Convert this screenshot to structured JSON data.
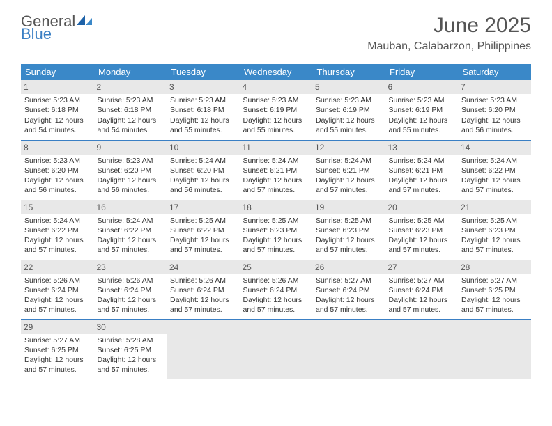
{
  "brand": {
    "word1": "General",
    "word2": "Blue"
  },
  "header": {
    "title": "June 2025",
    "location": "Mauban, Calabarzon, Philippines"
  },
  "colors": {
    "header_bg": "#3a88c8",
    "header_text": "#ffffff",
    "rule": "#3a7fc4",
    "daynum_bg": "#e8e8e8",
    "empty_bg": "#e8e8e8",
    "text": "#333333",
    "title_text": "#555555"
  },
  "days": [
    "Sunday",
    "Monday",
    "Tuesday",
    "Wednesday",
    "Thursday",
    "Friday",
    "Saturday"
  ],
  "weeks": [
    [
      {
        "n": "1",
        "sr": "Sunrise: 5:23 AM",
        "ss": "Sunset: 6:18 PM",
        "dl": "Daylight: 12 hours and 54 minutes."
      },
      {
        "n": "2",
        "sr": "Sunrise: 5:23 AM",
        "ss": "Sunset: 6:18 PM",
        "dl": "Daylight: 12 hours and 54 minutes."
      },
      {
        "n": "3",
        "sr": "Sunrise: 5:23 AM",
        "ss": "Sunset: 6:18 PM",
        "dl": "Daylight: 12 hours and 55 minutes."
      },
      {
        "n": "4",
        "sr": "Sunrise: 5:23 AM",
        "ss": "Sunset: 6:19 PM",
        "dl": "Daylight: 12 hours and 55 minutes."
      },
      {
        "n": "5",
        "sr": "Sunrise: 5:23 AM",
        "ss": "Sunset: 6:19 PM",
        "dl": "Daylight: 12 hours and 55 minutes."
      },
      {
        "n": "6",
        "sr": "Sunrise: 5:23 AM",
        "ss": "Sunset: 6:19 PM",
        "dl": "Daylight: 12 hours and 55 minutes."
      },
      {
        "n": "7",
        "sr": "Sunrise: 5:23 AM",
        "ss": "Sunset: 6:20 PM",
        "dl": "Daylight: 12 hours and 56 minutes."
      }
    ],
    [
      {
        "n": "8",
        "sr": "Sunrise: 5:23 AM",
        "ss": "Sunset: 6:20 PM",
        "dl": "Daylight: 12 hours and 56 minutes."
      },
      {
        "n": "9",
        "sr": "Sunrise: 5:23 AM",
        "ss": "Sunset: 6:20 PM",
        "dl": "Daylight: 12 hours and 56 minutes."
      },
      {
        "n": "10",
        "sr": "Sunrise: 5:24 AM",
        "ss": "Sunset: 6:20 PM",
        "dl": "Daylight: 12 hours and 56 minutes."
      },
      {
        "n": "11",
        "sr": "Sunrise: 5:24 AM",
        "ss": "Sunset: 6:21 PM",
        "dl": "Daylight: 12 hours and 57 minutes."
      },
      {
        "n": "12",
        "sr": "Sunrise: 5:24 AM",
        "ss": "Sunset: 6:21 PM",
        "dl": "Daylight: 12 hours and 57 minutes."
      },
      {
        "n": "13",
        "sr": "Sunrise: 5:24 AM",
        "ss": "Sunset: 6:21 PM",
        "dl": "Daylight: 12 hours and 57 minutes."
      },
      {
        "n": "14",
        "sr": "Sunrise: 5:24 AM",
        "ss": "Sunset: 6:22 PM",
        "dl": "Daylight: 12 hours and 57 minutes."
      }
    ],
    [
      {
        "n": "15",
        "sr": "Sunrise: 5:24 AM",
        "ss": "Sunset: 6:22 PM",
        "dl": "Daylight: 12 hours and 57 minutes."
      },
      {
        "n": "16",
        "sr": "Sunrise: 5:24 AM",
        "ss": "Sunset: 6:22 PM",
        "dl": "Daylight: 12 hours and 57 minutes."
      },
      {
        "n": "17",
        "sr": "Sunrise: 5:25 AM",
        "ss": "Sunset: 6:22 PM",
        "dl": "Daylight: 12 hours and 57 minutes."
      },
      {
        "n": "18",
        "sr": "Sunrise: 5:25 AM",
        "ss": "Sunset: 6:23 PM",
        "dl": "Daylight: 12 hours and 57 minutes."
      },
      {
        "n": "19",
        "sr": "Sunrise: 5:25 AM",
        "ss": "Sunset: 6:23 PM",
        "dl": "Daylight: 12 hours and 57 minutes."
      },
      {
        "n": "20",
        "sr": "Sunrise: 5:25 AM",
        "ss": "Sunset: 6:23 PM",
        "dl": "Daylight: 12 hours and 57 minutes."
      },
      {
        "n": "21",
        "sr": "Sunrise: 5:25 AM",
        "ss": "Sunset: 6:23 PM",
        "dl": "Daylight: 12 hours and 57 minutes."
      }
    ],
    [
      {
        "n": "22",
        "sr": "Sunrise: 5:26 AM",
        "ss": "Sunset: 6:24 PM",
        "dl": "Daylight: 12 hours and 57 minutes."
      },
      {
        "n": "23",
        "sr": "Sunrise: 5:26 AM",
        "ss": "Sunset: 6:24 PM",
        "dl": "Daylight: 12 hours and 57 minutes."
      },
      {
        "n": "24",
        "sr": "Sunrise: 5:26 AM",
        "ss": "Sunset: 6:24 PM",
        "dl": "Daylight: 12 hours and 57 minutes."
      },
      {
        "n": "25",
        "sr": "Sunrise: 5:26 AM",
        "ss": "Sunset: 6:24 PM",
        "dl": "Daylight: 12 hours and 57 minutes."
      },
      {
        "n": "26",
        "sr": "Sunrise: 5:27 AM",
        "ss": "Sunset: 6:24 PM",
        "dl": "Daylight: 12 hours and 57 minutes."
      },
      {
        "n": "27",
        "sr": "Sunrise: 5:27 AM",
        "ss": "Sunset: 6:24 PM",
        "dl": "Daylight: 12 hours and 57 minutes."
      },
      {
        "n": "28",
        "sr": "Sunrise: 5:27 AM",
        "ss": "Sunset: 6:25 PM",
        "dl": "Daylight: 12 hours and 57 minutes."
      }
    ],
    [
      {
        "n": "29",
        "sr": "Sunrise: 5:27 AM",
        "ss": "Sunset: 6:25 PM",
        "dl": "Daylight: 12 hours and 57 minutes."
      },
      {
        "n": "30",
        "sr": "Sunrise: 5:28 AM",
        "ss": "Sunset: 6:25 PM",
        "dl": "Daylight: 12 hours and 57 minutes."
      },
      null,
      null,
      null,
      null,
      null
    ]
  ]
}
